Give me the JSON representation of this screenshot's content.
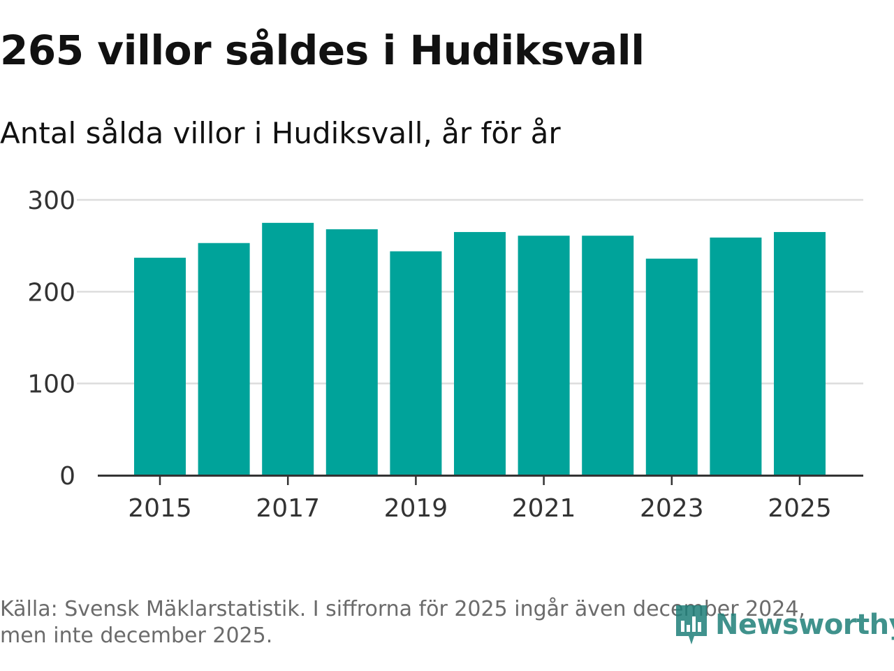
{
  "header": {
    "title": "265 villor såldes i Hudiksvall",
    "subtitle": "Antal sålda villor i Hudiksvall, år för år"
  },
  "footer": {
    "source_line1": "Källa: Svensk Mäklarstatistik. I siffrorna för 2025 ingår även december 2024,",
    "source_line2": "men inte december 2025.",
    "logo_text": "Newsworthy",
    "logo_icon": "newsworthy-bar-chart-icon"
  },
  "colors": {
    "bar": "#00a39a",
    "grid": "#dddddd",
    "axis": "#333333",
    "text": "#333333",
    "logo": "#1f7f79"
  },
  "chart_data": {
    "type": "bar",
    "categories": [
      "2015",
      "2016",
      "2017",
      "2018",
      "2019",
      "2020",
      "2021",
      "2022",
      "2023",
      "2024",
      "2025"
    ],
    "values": [
      237,
      253,
      275,
      268,
      244,
      265,
      261,
      261,
      236,
      259,
      265
    ],
    "xtick_labels": [
      "2015",
      "2017",
      "2019",
      "2021",
      "2023",
      "2025"
    ],
    "yticks": [
      0,
      100,
      200,
      300
    ],
    "ylim": [
      0,
      300
    ],
    "title": "265 villor såldes i Hudiksvall",
    "subtitle": "Antal sålda villor i Hudiksvall, år för år",
    "xlabel": "",
    "ylabel": "",
    "grid": true,
    "legend": false
  }
}
